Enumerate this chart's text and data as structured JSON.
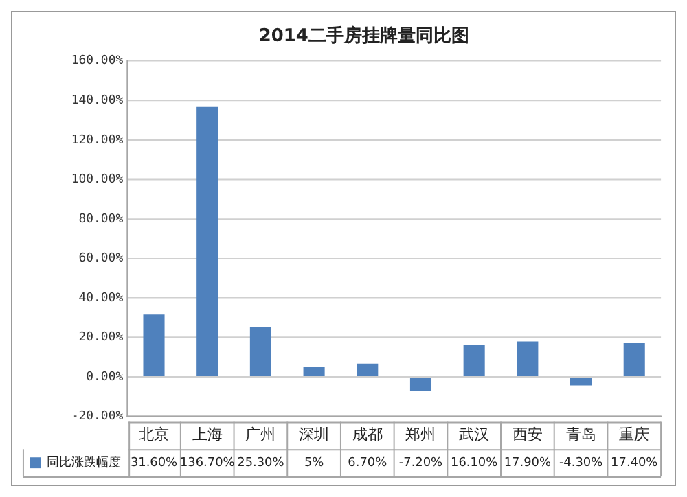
{
  "chart_data": {
    "type": "bar",
    "title": "2014二手房挂牌量同比图",
    "categories": [
      "北京",
      "上海",
      "广州",
      "深圳",
      "成都",
      "郑州",
      "武汉",
      "西安",
      "青岛",
      "重庆"
    ],
    "series": [
      {
        "name": "同比涨跌幅度",
        "color": "#4f81bd",
        "values": [
          31.6,
          136.7,
          25.3,
          5,
          6.7,
          -7.2,
          16.1,
          17.9,
          -4.3,
          17.4
        ],
        "value_labels": [
          "31.60%",
          "136.70%",
          "25.30%",
          "5%",
          "6.70%",
          "-7.20%",
          "16.10%",
          "17.90%",
          "-4.30%",
          "17.40%"
        ]
      }
    ],
    "ylim": [
      -20,
      160
    ],
    "yticks": [
      {
        "value": -20,
        "label": "-20.00%"
      },
      {
        "value": 0,
        "label": "0.00%"
      },
      {
        "value": 20,
        "label": "20.00%"
      },
      {
        "value": 40,
        "label": "40.00%"
      },
      {
        "value": 60,
        "label": "60.00%"
      },
      {
        "value": 80,
        "label": "80.00%"
      },
      {
        "value": 100,
        "label": "100.00%"
      },
      {
        "value": 120,
        "label": "120.00%"
      },
      {
        "value": 140,
        "label": "140.00%"
      },
      {
        "value": 160,
        "label": "160.00%"
      }
    ],
    "grid": "y",
    "legend": "bottom"
  }
}
